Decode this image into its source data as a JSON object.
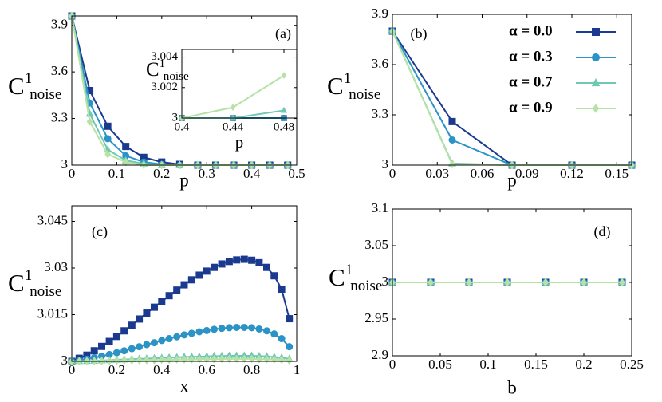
{
  "chart_data": [
    {
      "type": "line",
      "panel_label": "(a)",
      "xlabel": "p",
      "ylabel": "C",
      "ylabel_sup": "1",
      "ylabel_sub": "noise",
      "x": [
        0,
        0.04,
        0.08,
        0.12,
        0.16,
        0.2,
        0.24,
        0.28,
        0.32,
        0.36,
        0.4,
        0.44,
        0.48
      ],
      "series": [
        {
          "color": "#1b3a8f",
          "marker": "square",
          "values": [
            3.96,
            3.48,
            3.25,
            3.12,
            3.05,
            3.02,
            3.005,
            3,
            3,
            3,
            3,
            3,
            3
          ]
        },
        {
          "color": "#2b93c6",
          "marker": "circle",
          "values": [
            3.96,
            3.4,
            3.17,
            3.06,
            3.02,
            3.005,
            3,
            3,
            3,
            3,
            3,
            3,
            3
          ]
        },
        {
          "color": "#6fc8b2",
          "marker": "triangle",
          "values": [
            3.96,
            3.33,
            3.1,
            3.03,
            3.01,
            3,
            3,
            3,
            3,
            3,
            3,
            3,
            3
          ]
        },
        {
          "color": "#b6e2a6",
          "marker": "diamond",
          "values": [
            3.96,
            3.28,
            3.07,
            3.02,
            3,
            3,
            3,
            3,
            3,
            3,
            3,
            3,
            3
          ]
        }
      ],
      "xlim": [
        0,
        0.5
      ],
      "xticks": [
        0,
        0.1,
        0.2,
        0.3,
        0.4,
        0.5
      ],
      "ylim": [
        3,
        3.96
      ],
      "yticks": [
        3,
        3.3,
        3.6,
        3.9
      ],
      "legend": false,
      "grid": false
    },
    {
      "type": "line",
      "xlabel": "p",
      "ylabel": "C",
      "ylabel_sup": "1",
      "ylabel_sub": "noise",
      "x": [
        0.4,
        0.44,
        0.48
      ],
      "series": [
        {
          "color": "#1b3a8f",
          "marker": "square",
          "values": [
            3,
            3,
            3
          ]
        },
        {
          "color": "#2b93c6",
          "marker": "circle",
          "values": [
            3,
            3,
            3
          ]
        },
        {
          "color": "#6fc8b2",
          "marker": "triangle",
          "values": [
            3,
            3,
            3.0005
          ]
        },
        {
          "color": "#b6e2a6",
          "marker": "diamond",
          "values": [
            3,
            3.0007,
            3.0028
          ]
        }
      ],
      "xlim": [
        0.4,
        0.49
      ],
      "xticks": [
        0.4,
        0.44,
        0.48
      ],
      "ylim": [
        3,
        3.0045
      ],
      "yticks": [
        3,
        3.002,
        3.004
      ],
      "legend": false,
      "grid": false
    },
    {
      "type": "line",
      "panel_label": "(b)",
      "xlabel": "p",
      "ylabel": "C",
      "ylabel_sup": "1",
      "ylabel_sub": "noise",
      "x": [
        0,
        0.04,
        0.08,
        0.12,
        0.16
      ],
      "series": [
        {
          "name": "α = 0.0",
          "color": "#1b3a8f",
          "marker": "square",
          "values": [
            3.8,
            3.26,
            3,
            3,
            3
          ]
        },
        {
          "name": "α = 0.3",
          "color": "#2b93c6",
          "marker": "circle",
          "values": [
            3.8,
            3.15,
            3,
            3,
            3
          ]
        },
        {
          "name": "α = 0.7",
          "color": "#6fc8b2",
          "marker": "triangle",
          "values": [
            3.8,
            3.01,
            3,
            3,
            3
          ]
        },
        {
          "name": "α = 0.9",
          "color": "#b6e2a6",
          "marker": "diamond",
          "values": [
            3.8,
            3.005,
            3,
            3,
            3
          ]
        }
      ],
      "xlim": [
        0,
        0.16
      ],
      "xticks": [
        0,
        0.03,
        0.06,
        0.09,
        0.12,
        0.15
      ],
      "ylim": [
        3,
        3.9
      ],
      "yticks": [
        3,
        3.3,
        3.6,
        3.9
      ],
      "legend": "upper right",
      "grid": false
    },
    {
      "type": "line",
      "panel_label": "(c)",
      "xlabel": "x",
      "ylabel": "C",
      "ylabel_sup": "1",
      "ylabel_sub": "noise",
      "x": [
        0,
        0.033,
        0.067,
        0.1,
        0.133,
        0.167,
        0.2,
        0.233,
        0.267,
        0.3,
        0.333,
        0.367,
        0.4,
        0.433,
        0.467,
        0.5,
        0.533,
        0.567,
        0.6,
        0.633,
        0.667,
        0.7,
        0.733,
        0.767,
        0.8,
        0.833,
        0.867,
        0.9,
        0.933,
        0.967
      ],
      "series": [
        {
          "color": "#1b3a8f",
          "marker": "square",
          "values": [
            3,
            3.001,
            3.002,
            3.0034,
            3.0048,
            3.0064,
            3.008,
            3.0098,
            3.0116,
            3.0136,
            3.0155,
            3.0174,
            3.0192,
            3.0211,
            3.0229,
            3.0246,
            3.0262,
            3.0277,
            3.029,
            3.0302,
            3.0313,
            3.0321,
            3.0326,
            3.0328,
            3.0325,
            3.0317,
            3.0302,
            3.0275,
            3.0232,
            3.0137
          ]
        },
        {
          "color": "#2b93c6",
          "marker": "circle",
          "values": [
            3,
            3.0003,
            3.0007,
            3.0012,
            3.0017,
            3.0022,
            3.0028,
            3.0034,
            3.0041,
            3.0047,
            3.0054,
            3.006,
            3.0067,
            3.0073,
            3.0079,
            3.0085,
            3.009,
            3.0095,
            3.0099,
            3.0103,
            3.0106,
            3.0108,
            3.0109,
            3.0109,
            3.0108,
            3.0104,
            3.0098,
            3.0088,
            3.0073,
            3.0047
          ]
        },
        {
          "color": "#6fc8b2",
          "marker": "triangle",
          "values": [
            3,
            3.0001,
            3.0001,
            3.0002,
            3.0003,
            3.0004,
            3.0005,
            3.0006,
            3.0007,
            3.0008,
            3.0009,
            3.001,
            3.0011,
            3.0012,
            3.0013,
            3.0014,
            3.0015,
            3.0015,
            3.0016,
            3.0017,
            3.0017,
            3.0018,
            3.0018,
            3.0018,
            3.0018,
            3.0017,
            3.0016,
            3.0014,
            3.0012,
            3.0008
          ]
        },
        {
          "color": "#b6e2a6",
          "marker": "diamond",
          "values": [
            3,
            3,
            3.0001,
            3.0001,
            3.0001,
            3.0002,
            3.0002,
            3.0003,
            3.0003,
            3.0004,
            3.0004,
            3.0004,
            3.0005,
            3.0005,
            3.0006,
            3.0006,
            3.0006,
            3.0007,
            3.0007,
            3.0007,
            3.0008,
            3.0008,
            3.0008,
            3.0008,
            3.0008,
            3.0007,
            3.0007,
            3.0006,
            3.0005,
            3.0003
          ]
        }
      ],
      "xlim": [
        0,
        1
      ],
      "xticks": [
        0,
        0.2,
        0.4,
        0.6,
        0.8,
        1
      ],
      "ylim": [
        3,
        3.05
      ],
      "yticks": [
        3,
        3.015,
        3.03,
        3.045
      ],
      "legend": false,
      "grid": false
    },
    {
      "type": "line",
      "panel_label": "(d)",
      "xlabel": "b",
      "ylabel": "C",
      "ylabel_sup": "1",
      "ylabel_sub": "noise",
      "x": [
        0,
        0.04,
        0.08,
        0.12,
        0.16,
        0.2,
        0.24
      ],
      "series": [
        {
          "color": "#1b3a8f",
          "marker": "square",
          "values": [
            3,
            3,
            3,
            3,
            3,
            3,
            3
          ]
        },
        {
          "color": "#2b93c6",
          "marker": "circle",
          "values": [
            3,
            3,
            3,
            3,
            3,
            3,
            3
          ]
        },
        {
          "color": "#6fc8b2",
          "marker": "triangle",
          "values": [
            3,
            3,
            3,
            3,
            3,
            3,
            3
          ]
        },
        {
          "color": "#b6e2a6",
          "marker": "diamond",
          "values": [
            3,
            3,
            3,
            3,
            3,
            3,
            3
          ]
        }
      ],
      "xlim": [
        0,
        0.25
      ],
      "xticks": [
        0,
        0.05,
        0.1,
        0.15,
        0.2,
        0.25
      ],
      "ylim": [
        2.9,
        3.1
      ],
      "yticks": [
        2.9,
        2.95,
        3,
        3.05,
        3.1
      ],
      "legend": false,
      "grid": false
    }
  ]
}
